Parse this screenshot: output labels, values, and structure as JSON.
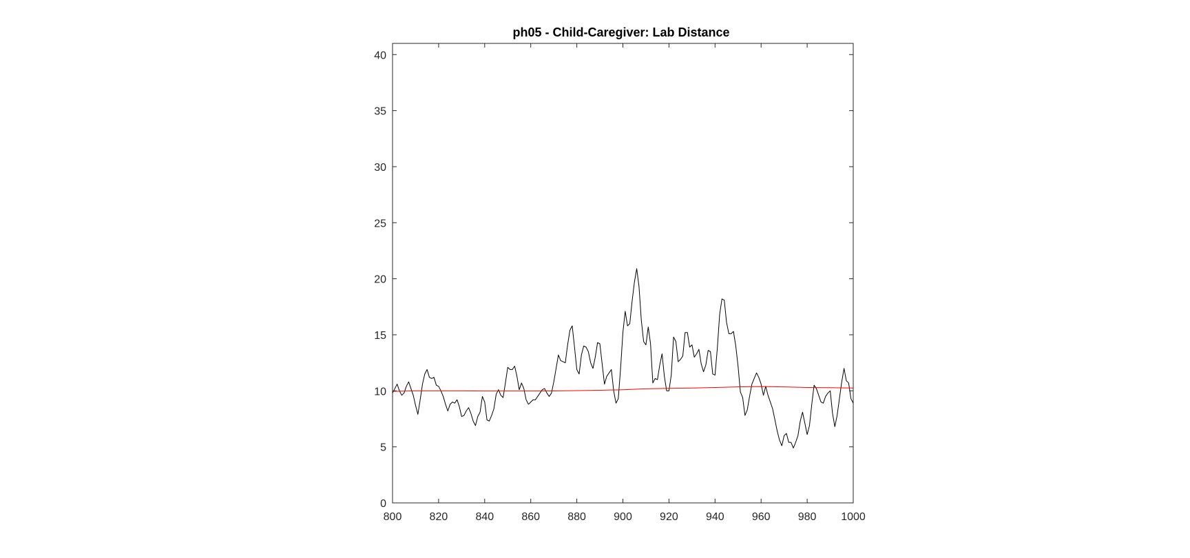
{
  "chart_data": {
    "type": "line",
    "title": "ph05 - Child-Caregiver: Lab Distance",
    "xlabel": "",
    "ylabel": "",
    "xlim": [
      800,
      1000
    ],
    "ylim": [
      0,
      41
    ],
    "xticks": [
      800,
      820,
      840,
      860,
      880,
      900,
      920,
      940,
      960,
      980,
      1000
    ],
    "yticks": [
      0,
      5,
      10,
      15,
      20,
      25,
      30,
      35,
      40
    ],
    "grid": false,
    "legend": "none",
    "series": [
      {
        "color": "#000000",
        "x": [
          800,
          801,
          802,
          803,
          804,
          805,
          806,
          807,
          808,
          809,
          810,
          811,
          812,
          813,
          814,
          815,
          816,
          817,
          818,
          819,
          820,
          821,
          822,
          823,
          824,
          825,
          826,
          827,
          828,
          829,
          830,
          831,
          832,
          833,
          834,
          835,
          836,
          837,
          838,
          839,
          840,
          841,
          842,
          843,
          844,
          845,
          846,
          847,
          848,
          849,
          850,
          851,
          852,
          853,
          854,
          855,
          856,
          857,
          858,
          859,
          860,
          861,
          862,
          863,
          864,
          865,
          866,
          867,
          868,
          869,
          870,
          871,
          872,
          873,
          874,
          875,
          876,
          877,
          878,
          879,
          880,
          881,
          882,
          883,
          884,
          885,
          886,
          887,
          888,
          889,
          890,
          891,
          892,
          893,
          894,
          895,
          896,
          897,
          898,
          899,
          900,
          901,
          902,
          903,
          904,
          905,
          906,
          907,
          908,
          909,
          910,
          911,
          912,
          913,
          914,
          915,
          916,
          917,
          918,
          919,
          920,
          921,
          922,
          923,
          924,
          925,
          926,
          927,
          928,
          929,
          930,
          931,
          932,
          933,
          934,
          935,
          936,
          937,
          938,
          939,
          940,
          941,
          942,
          943,
          944,
          945,
          946,
          947,
          948,
          949,
          950,
          951,
          952,
          953,
          954,
          955,
          956,
          957,
          958,
          959,
          960,
          961,
          962,
          963,
          964,
          965,
          966,
          967,
          968,
          969,
          970,
          971,
          972,
          973,
          974,
          975,
          976,
          977,
          978,
          979,
          980,
          981,
          982,
          983,
          984,
          985,
          986,
          987,
          988,
          989,
          990,
          991,
          992,
          993,
          994,
          995,
          996,
          997,
          998,
          999,
          1000
        ],
        "y": [
          9.8,
          10.2,
          10.6,
          10.0,
          9.6,
          9.8,
          10.4,
          10.8,
          10.2,
          9.6,
          8.7,
          7.9,
          9.2,
          10.6,
          11.5,
          11.9,
          11.2,
          11.1,
          11.2,
          10.5,
          10.4,
          10.0,
          9.5,
          8.8,
          8.2,
          8.8,
          9.0,
          8.9,
          9.2,
          8.6,
          7.7,
          7.8,
          8.2,
          8.5,
          8.0,
          7.3,
          6.9,
          7.7,
          8.1,
          9.5,
          9.0,
          7.4,
          7.3,
          7.8,
          8.4,
          9.7,
          10.1,
          9.6,
          9.4,
          10.7,
          12.1,
          11.9,
          11.9,
          12.2,
          11.3,
          10.1,
          10.7,
          10.2,
          9.2,
          8.8,
          9.0,
          9.2,
          9.2,
          9.5,
          9.8,
          10.1,
          10.2,
          9.8,
          9.5,
          9.8,
          10.8,
          12.0,
          13.2,
          12.7,
          12.6,
          12.5,
          14.1,
          15.4,
          15.8,
          13.9,
          11.9,
          11.5,
          13.2,
          14.0,
          13.9,
          13.5,
          12.5,
          12.0,
          13.0,
          14.3,
          14.2,
          12.4,
          10.6,
          11.3,
          11.6,
          11.9,
          10.0,
          8.9,
          9.3,
          12.0,
          15.2,
          17.1,
          15.8,
          16.0,
          18.0,
          19.7,
          20.9,
          19.3,
          16.3,
          14.4,
          14.1,
          15.7,
          14.2,
          10.7,
          11.1,
          11.0,
          12.3,
          13.3,
          11.3,
          10.0,
          10.0,
          11.4,
          14.8,
          14.4,
          12.6,
          12.8,
          13.1,
          15.2,
          15.2,
          13.9,
          14.1,
          13.0,
          13.3,
          13.7,
          12.4,
          11.7,
          12.3,
          13.6,
          13.5,
          11.5,
          11.4,
          13.8,
          16.8,
          18.2,
          18.1,
          16.1,
          15.1,
          15.1,
          15.3,
          14.0,
          12.2,
          9.9,
          9.4,
          7.8,
          8.3,
          9.5,
          10.6,
          11.1,
          11.6,
          11.2,
          10.6,
          9.6,
          10.4,
          9.6,
          9.0,
          8.4,
          7.4,
          6.4,
          5.6,
          5.1,
          6.0,
          6.2,
          5.4,
          5.4,
          4.9,
          5.4,
          6.0,
          7.3,
          8.1,
          7.1,
          6.1,
          6.9,
          8.8,
          10.5,
          10.2,
          9.6,
          9.0,
          8.9,
          9.5,
          9.8,
          10.0,
          8.0,
          6.8,
          7.8,
          9.3,
          10.8,
          12.0,
          10.9,
          10.7,
          9.3,
          8.9
        ]
      },
      {
        "color": "#ff0000",
        "x": [
          800,
          810,
          820,
          830,
          840,
          850,
          860,
          870,
          880,
          890,
          900,
          910,
          920,
          930,
          940,
          950,
          960,
          970,
          980,
          990,
          1000
        ],
        "y": [
          9.95,
          10.0,
          10.0,
          10.0,
          9.98,
          9.98,
          9.98,
          9.99,
          10.02,
          10.05,
          10.1,
          10.18,
          10.22,
          10.25,
          10.3,
          10.35,
          10.38,
          10.35,
          10.3,
          10.28,
          10.25
        ]
      }
    ]
  }
}
